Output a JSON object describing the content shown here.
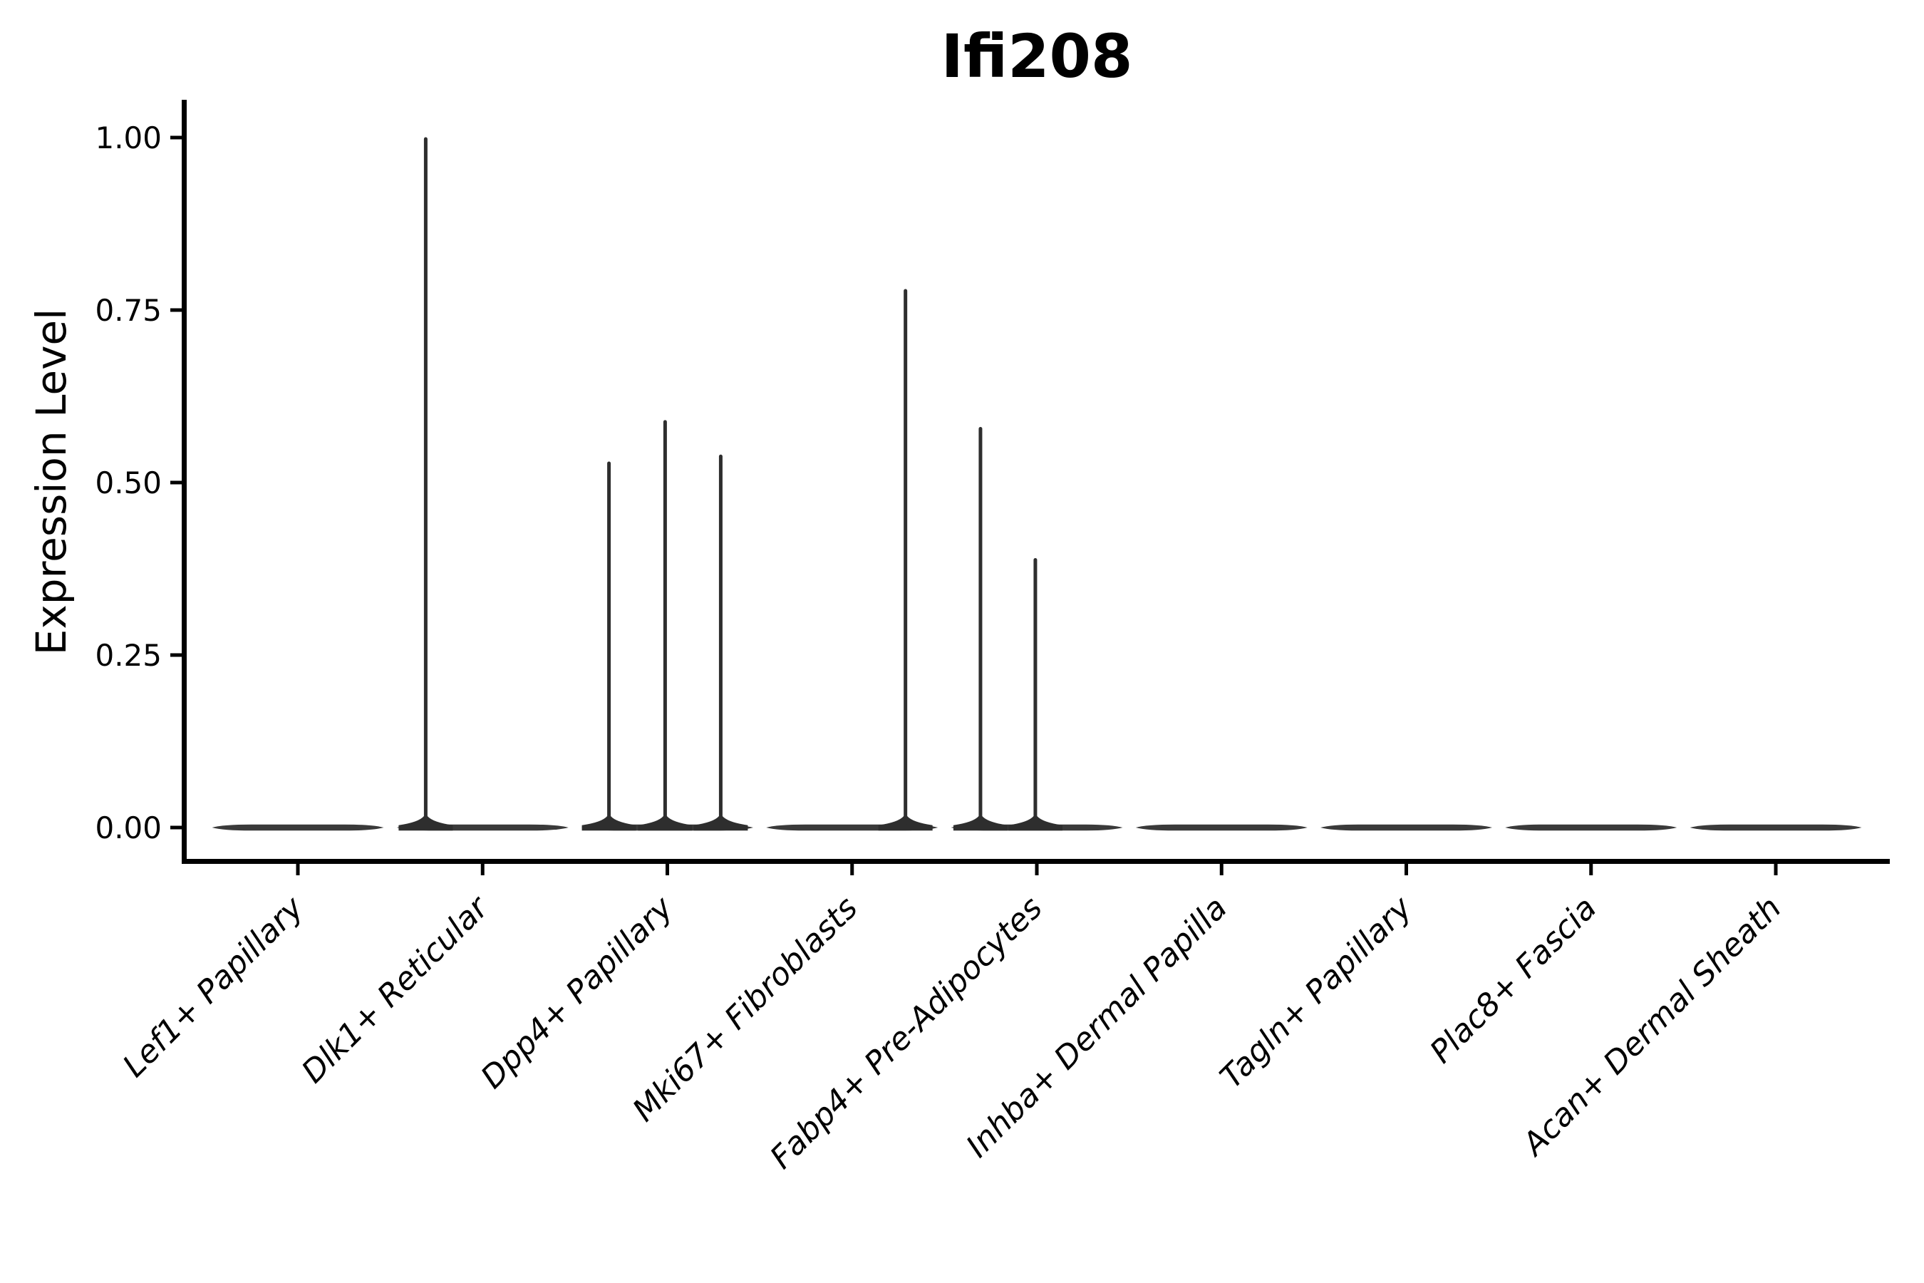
{
  "figure": {
    "title": "Ifi208"
  },
  "chart_data": {
    "type": "violin",
    "title": "Ifi208",
    "xlabel": "",
    "ylabel": "Expression Level",
    "ylim": [
      -0.05,
      1.05
    ],
    "grid": false,
    "legend_position": "none",
    "ytick_values": [
      0.0,
      0.25,
      0.5,
      0.75,
      1.0
    ],
    "ytick_labels": [
      "0.00",
      "0.25",
      "0.50",
      "0.75",
      "1.00"
    ],
    "categories": [
      "Lef1+ Papillary",
      "Dlk1+ Reticular",
      "Dpp4+ Papillary",
      "Mki67+ Fibroblasts",
      "Fabp4+ Pre-Adipocytes",
      "Inhba+ Dermal Papilla",
      "Tagln+ Papillary",
      "Plac8+ Fascia",
      "Acan+ Dermal Sheath"
    ],
    "violins": [
      {
        "category": "Lef1+ Papillary",
        "body_value": 0,
        "spikes": []
      },
      {
        "category": "Dlk1+ Reticular",
        "body_value": 0,
        "spikes": [
          {
            "offset_frac": -0.308,
            "value": 1.0
          }
        ]
      },
      {
        "category": "Dpp4+ Papillary",
        "body_value": 0,
        "spikes": [
          {
            "offset_frac": -0.316,
            "value": 0.53
          },
          {
            "offset_frac": -0.012,
            "value": 0.59
          },
          {
            "offset_frac": 0.289,
            "value": 0.54
          }
        ]
      },
      {
        "category": "Mki67+ Fibroblasts",
        "body_value": 0,
        "spikes": [
          {
            "offset_frac": 0.289,
            "value": 0.78
          }
        ]
      },
      {
        "category": "Fabp4+ Pre-Adipocytes",
        "body_value": 0,
        "spikes": [
          {
            "offset_frac": -0.305,
            "value": 0.58
          },
          {
            "offset_frac": -0.008,
            "value": 0.39
          }
        ]
      },
      {
        "category": "Inhba+ Dermal Papilla",
        "body_value": 0,
        "spikes": []
      },
      {
        "category": "Tagln+ Papillary",
        "body_value": 0,
        "spikes": []
      },
      {
        "category": "Plac8+ Fascia",
        "body_value": 0,
        "spikes": []
      },
      {
        "category": "Acan+ Dermal Sheath",
        "body_value": 0,
        "spikes": []
      }
    ]
  },
  "colors": {
    "background": "#ffffff",
    "axis": "#000000",
    "text": "#000000",
    "violin_body": "#3a3a3a",
    "violin_spike": "#2e2e2e"
  }
}
